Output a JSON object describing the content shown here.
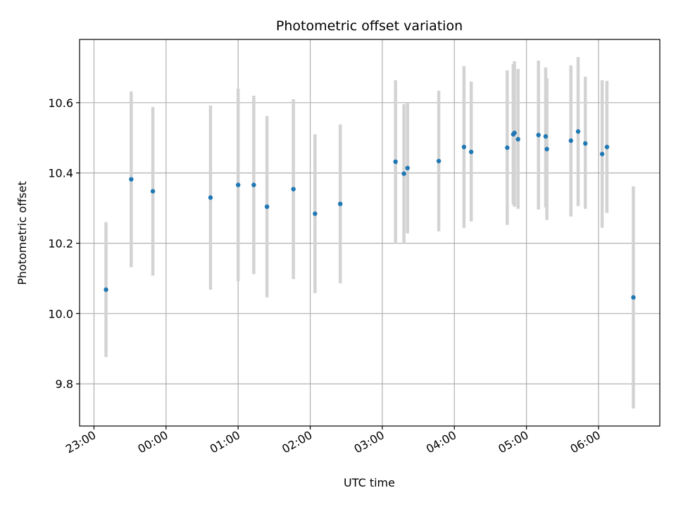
{
  "chart_data": {
    "type": "scatter",
    "title": "Photometric offset variation",
    "xlabel": "UTC time",
    "ylabel": "Photometric offset",
    "x_tick_labels": [
      "23:00",
      "00:00",
      "01:00",
      "02:00",
      "03:00",
      "04:00",
      "05:00",
      "06:00"
    ],
    "x_tick_hours": [
      -1,
      0,
      1,
      2,
      3,
      4,
      5,
      6
    ],
    "y_ticks": [
      9.8,
      10.0,
      10.2,
      10.4,
      10.6
    ],
    "y_tick_labels": [
      "9.8",
      "10.0",
      "10.2",
      "10.4",
      "10.6"
    ],
    "xlim_hours": [
      -1.2,
      6.85
    ],
    "ylim": [
      9.68,
      10.78
    ],
    "grid": true,
    "point_color": "#1f77b4",
    "errorbar_color": "#d3d3d3",
    "series": [
      {
        "points": [
          {
            "x": "23:10",
            "y": 10.068,
            "lo": 9.876,
            "hi": 10.26
          },
          {
            "x": "23:31",
            "y": 10.382,
            "lo": 10.132,
            "hi": 10.632
          },
          {
            "x": "23:49",
            "y": 10.348,
            "lo": 10.108,
            "hi": 10.588
          },
          {
            "x": "00:37",
            "y": 10.33,
            "lo": 10.068,
            "hi": 10.592
          },
          {
            "x": "01:00",
            "y": 10.366,
            "lo": 10.092,
            "hi": 10.64
          },
          {
            "x": "01:13",
            "y": 10.366,
            "lo": 10.112,
            "hi": 10.62
          },
          {
            "x": "01:24",
            "y": 10.304,
            "lo": 10.046,
            "hi": 10.562
          },
          {
            "x": "01:46",
            "y": 10.354,
            "lo": 10.098,
            "hi": 10.61
          },
          {
            "x": "02:04",
            "y": 10.284,
            "lo": 10.058,
            "hi": 10.51
          },
          {
            "x": "02:25",
            "y": 10.312,
            "lo": 10.086,
            "hi": 10.538
          },
          {
            "x": "03:11",
            "y": 10.432,
            "lo": 10.2,
            "hi": 10.664
          },
          {
            "x": "03:18",
            "y": 10.398,
            "lo": 10.2,
            "hi": 10.596
          },
          {
            "x": "03:21",
            "y": 10.414,
            "lo": 10.228,
            "hi": 10.6
          },
          {
            "x": "03:47",
            "y": 10.434,
            "lo": 10.234,
            "hi": 10.634
          },
          {
            "x": "04:08",
            "y": 10.474,
            "lo": 10.244,
            "hi": 10.704
          },
          {
            "x": "04:14",
            "y": 10.46,
            "lo": 10.262,
            "hi": 10.66
          },
          {
            "x": "04:44",
            "y": 10.472,
            "lo": 10.252,
            "hi": 10.692
          },
          {
            "x": "04:49",
            "y": 10.51,
            "lo": 10.31,
            "hi": 10.71
          },
          {
            "x": "04:50",
            "y": 10.514,
            "lo": 10.304,
            "hi": 10.718
          },
          {
            "x": "04:53",
            "y": 10.496,
            "lo": 10.298,
            "hi": 10.696
          },
          {
            "x": "05:10",
            "y": 10.508,
            "lo": 10.296,
            "hi": 10.72
          },
          {
            "x": "05:16",
            "y": 10.504,
            "lo": 10.302,
            "hi": 10.7
          },
          {
            "x": "05:17",
            "y": 10.468,
            "lo": 10.266,
            "hi": 10.67
          },
          {
            "x": "05:37",
            "y": 10.492,
            "lo": 10.276,
            "hi": 10.706
          },
          {
            "x": "05:43",
            "y": 10.518,
            "lo": 10.306,
            "hi": 10.73
          },
          {
            "x": "05:49",
            "y": 10.484,
            "lo": 10.298,
            "hi": 10.674
          },
          {
            "x": "06:03",
            "y": 10.454,
            "lo": 10.244,
            "hi": 10.664
          },
          {
            "x": "06:07",
            "y": 10.474,
            "lo": 10.286,
            "hi": 10.662
          },
          {
            "x": "06:29",
            "y": 10.046,
            "lo": 9.73,
            "hi": 10.362
          }
        ]
      }
    ]
  }
}
